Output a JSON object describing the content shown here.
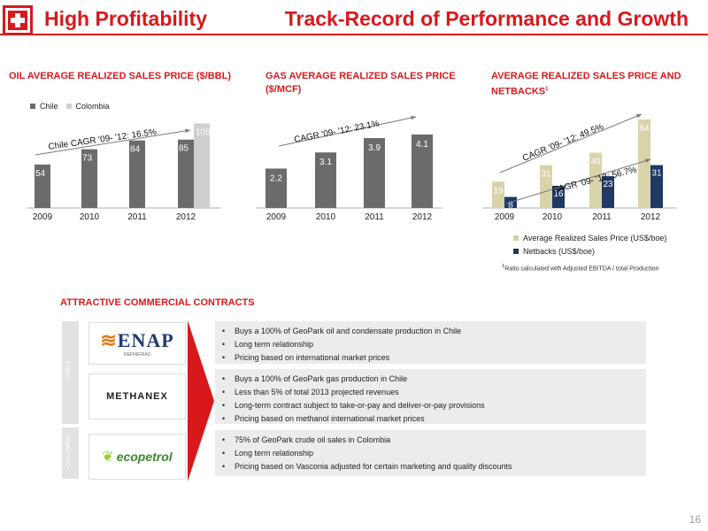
{
  "header": {
    "left_title": "High Profitability",
    "right_title": "Track-Record of Performance and Growth",
    "brand_color": "#d7191c"
  },
  "charts": {
    "oil_title": "OIL AVERAGE REALIZED SALES PRICE ($/BBL)",
    "oil_legend": [
      "Chile",
      "Colombia"
    ],
    "oil_cagr": "Chile CAGR '09- '12: 16.5%",
    "gas_title": "GAS AVERAGE REALIZED SALES PRICE ($/MCF)",
    "gas_cagr": "CAGR '09- '12: 23.1%",
    "netback_title": "AVERAGE REALIZED SALES PRICE AND NETBACKS",
    "netback_title_sup": "1",
    "netback_cagr_price": "CAGR '09- '12: 49.5%",
    "netback_cagr_net": "CAGR '09- '12: 56.7%",
    "netback_legend": [
      "Average Realized Sales Price (US$/boe)",
      "Netbacks (US$/boe)"
    ],
    "footnote_sup": "1",
    "footnote": "Ratio calculated with Adjusted EBITDA / total Production"
  },
  "chart_data": [
    {
      "type": "bar",
      "title": "OIL AVERAGE REALIZED SALES PRICE ($/BBL)",
      "categories": [
        "2009",
        "2010",
        "2011",
        "2012"
      ],
      "series": [
        {
          "name": "Chile",
          "values": [
            54,
            73,
            84,
            85
          ]
        },
        {
          "name": "Colombia",
          "values": [
            null,
            null,
            null,
            105
          ]
        }
      ],
      "colors": [
        "#6b6b6b",
        "#cfcfcf"
      ],
      "ylim": [
        0,
        110
      ]
    },
    {
      "type": "bar",
      "title": "GAS AVERAGE REALIZED SALES PRICE ($/MCF)",
      "categories": [
        "2009",
        "2010",
        "2011",
        "2012"
      ],
      "values": [
        2.2,
        3.1,
        3.9,
        4.1
      ],
      "colors": [
        "#6b6b6b"
      ],
      "ylim": [
        0,
        4.6
      ]
    },
    {
      "type": "bar",
      "title": "AVERAGE REALIZED SALES PRICE AND NETBACKS",
      "categories": [
        "2009",
        "2010",
        "2011",
        "2012"
      ],
      "series": [
        {
          "name": "Average Realized Sales Price (US$/boe)",
          "values": [
            19,
            31,
            40,
            64
          ]
        },
        {
          "name": "Netbacks (US$/boe)",
          "values": [
            8,
            16,
            23,
            31
          ]
        }
      ],
      "colors": [
        "#d9d3aa",
        "#1f3864"
      ],
      "ylim": [
        0,
        70
      ]
    }
  ],
  "contracts": {
    "section_title": "ATTRACTIVE COMMERCIAL CONTRACTS",
    "chile_label": "CHILE",
    "colombia_label": "COLOMBIA",
    "enap_logo_text": "ENAP",
    "enap_logo_sub": "REFINERIAS",
    "methanex_logo_text": "METHANEX",
    "ecopetrol_logo_text": "ecopetrol",
    "enap_bullets": [
      "Buys a 100% of GeoPark oil and condensate production in Chile",
      "Long term relationship",
      "Pricing based on international market prices"
    ],
    "methanex_bullets": [
      "Buys a 100% of GeoPark gas production in Chile",
      "Less than 5% of total 2013 projected revenues",
      "Long-term contract subject to take-or-pay and deliver-or-pay provisions",
      "Pricing based on methanol international market prices"
    ],
    "ecopetrol_bullets": [
      "75% of GeoPark crude oil sales in Colombia",
      "Long term relationship",
      "Pricing based on Vasconia adjusted for certain marketing and quality discounts"
    ]
  },
  "footer": {
    "page_number": "16"
  }
}
